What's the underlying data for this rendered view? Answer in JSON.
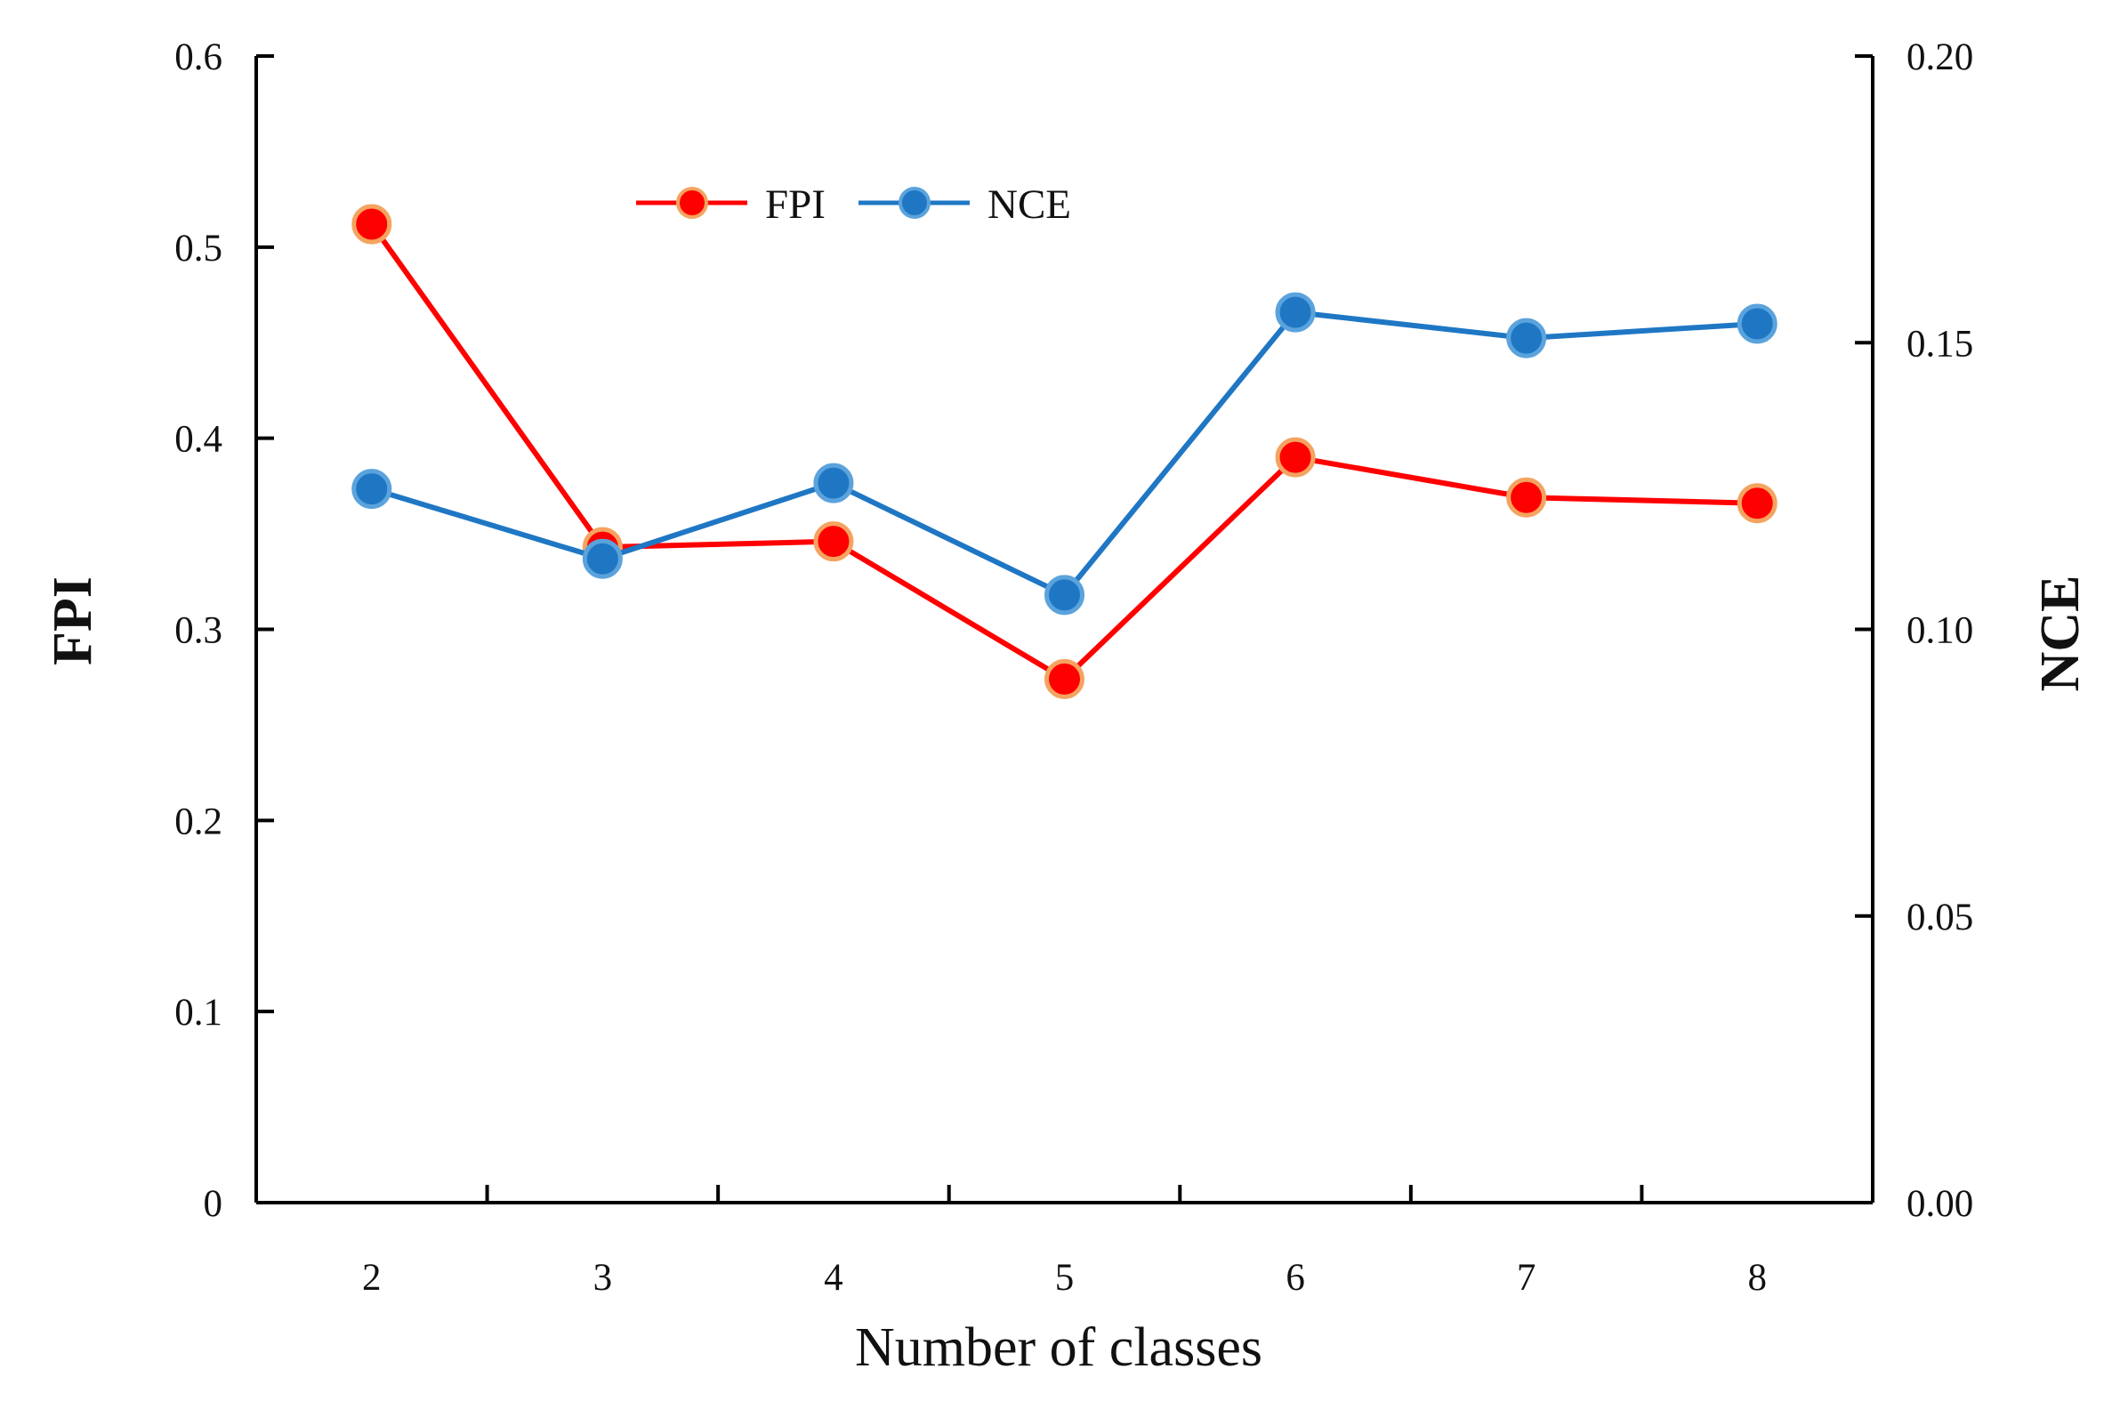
{
  "chart_data": {
    "type": "line",
    "title": "",
    "xlabel": "Number of classes",
    "ylabel": "FPI",
    "y2label": "NCE",
    "categories": [
      2,
      3,
      4,
      5,
      6,
      7,
      8
    ],
    "x_tick_labels": [
      "2",
      "3",
      "4",
      "5",
      "6",
      "7",
      "8"
    ],
    "ylim": [
      0,
      0.6
    ],
    "y_ticks": [
      0,
      0.1,
      0.2,
      0.3,
      0.4,
      0.5,
      0.6
    ],
    "y_tick_labels": [
      "0",
      "0.1",
      "0.2",
      "0.3",
      "0.4",
      "0.5",
      "0.6"
    ],
    "y2lim": [
      0,
      0.2
    ],
    "y2_ticks": [
      0,
      0.05,
      0.1,
      0.15,
      0.2
    ],
    "y2_tick_labels": [
      "0.00",
      "0.05",
      "0.10",
      "0.15",
      "0.20"
    ],
    "grid": false,
    "legend_position": "top-left",
    "series": [
      {
        "name": "FPI",
        "axis": "left",
        "color": "#ff0000",
        "marker_edge": "#f4a460",
        "values": [
          0.512,
          0.343,
          0.346,
          0.274,
          0.39,
          0.369,
          0.366
        ]
      },
      {
        "name": "NCE",
        "axis": "right",
        "color": "#1f77c4",
        "marker_edge": "#5ba3dc",
        "values": [
          0.1245,
          0.1123,
          0.1255,
          0.106,
          0.1553,
          0.1508,
          0.1533
        ]
      }
    ]
  }
}
